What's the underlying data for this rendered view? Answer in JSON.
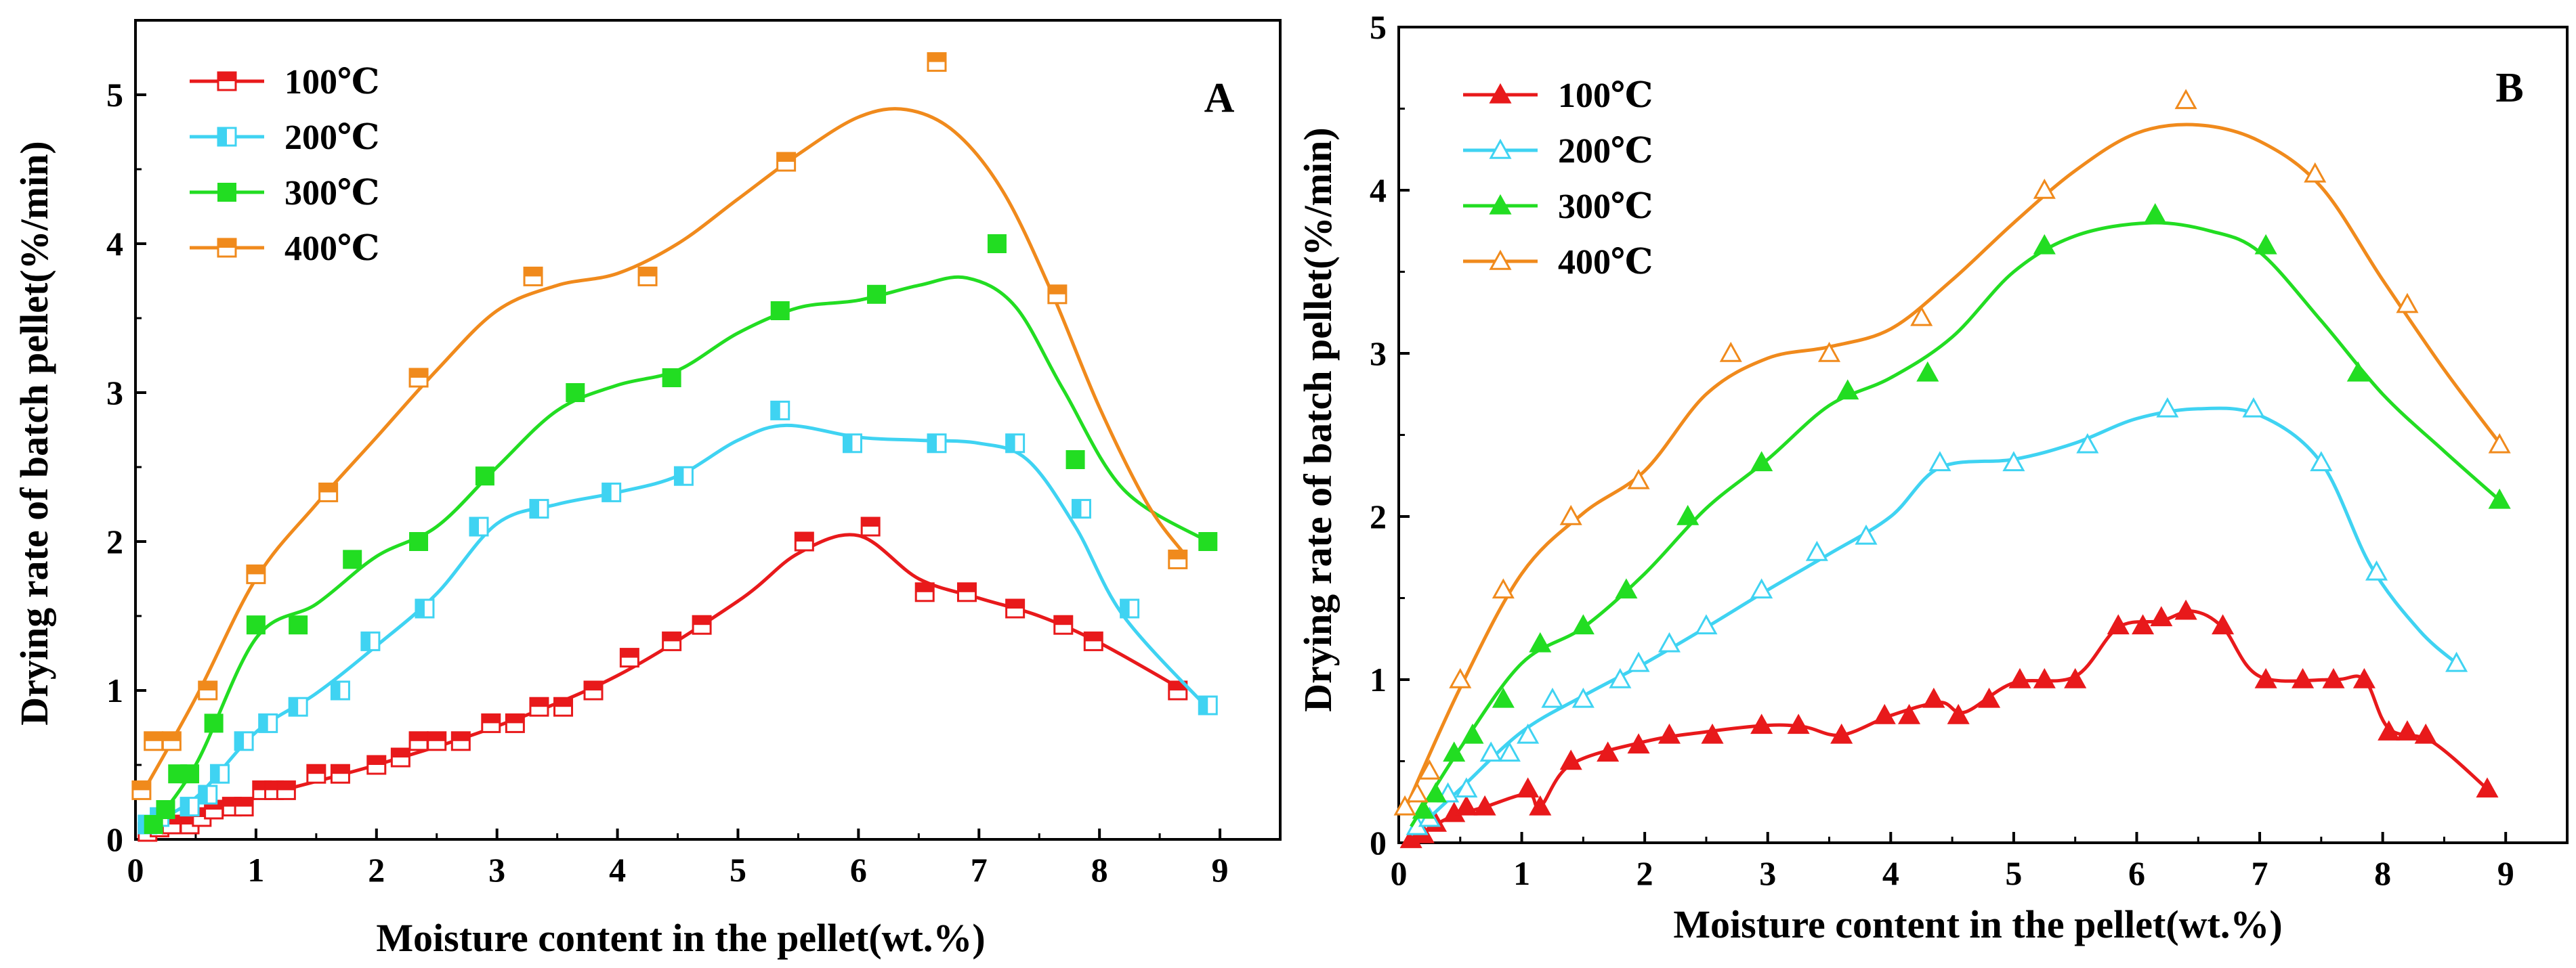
{
  "chart_data": [
    {
      "panel": "A",
      "type": "line",
      "xlabel": "Moisture content in the pellet(wt.%)",
      "ylabel": "Drying rate of batch pellet(%/min)",
      "xlim": [
        0,
        9.5
      ],
      "ylim": [
        0,
        5.5
      ],
      "xticks": [
        0,
        1,
        2,
        3,
        4,
        5,
        6,
        7,
        8,
        9
      ],
      "yticks": [
        0,
        1,
        2,
        3,
        4,
        5
      ],
      "legend_position": "top-left",
      "marker": "square",
      "series": [
        {
          "name": "100℃",
          "color": "#e8191b",
          "x": [
            0.1,
            0.2,
            0.3,
            0.45,
            0.55,
            0.65,
            0.8,
            0.9,
            1.05,
            1.15,
            1.25,
            1.5,
            1.7,
            2.0,
            2.2,
            2.35,
            2.5,
            2.7,
            2.95,
            3.15,
            3.35,
            3.55,
            3.8,
            4.1,
            4.45,
            4.7,
            5.55,
            6.1,
            6.55,
            6.9,
            7.3,
            7.7,
            7.95,
            8.65
          ],
          "y": [
            0.05,
            0.08,
            0.1,
            0.1,
            0.15,
            0.2,
            0.22,
            0.22,
            0.33,
            0.33,
            0.33,
            0.44,
            0.44,
            0.5,
            0.55,
            0.66,
            0.66,
            0.66,
            0.78,
            0.78,
            0.89,
            0.89,
            1.0,
            1.22,
            1.33,
            1.44,
            2.0,
            2.1,
            1.66,
            1.66,
            1.55,
            1.44,
            1.33,
            1.0
          ],
          "curve": [
            [
              0.1,
              0.05
            ],
            [
              1.0,
              0.28
            ],
            [
              2.0,
              0.5
            ],
            [
              3.0,
              0.76
            ],
            [
              4.0,
              1.1
            ],
            [
              5.0,
              1.6
            ],
            [
              5.5,
              1.92
            ],
            [
              6.0,
              2.04
            ],
            [
              6.5,
              1.75
            ],
            [
              7.0,
              1.62
            ],
            [
              7.5,
              1.5
            ],
            [
              8.0,
              1.32
            ],
            [
              8.7,
              1.0
            ]
          ]
        },
        {
          "name": "200℃",
          "color": "#3fd3f2",
          "x": [
            0.1,
            0.2,
            0.45,
            0.6,
            0.7,
            0.9,
            1.1,
            1.35,
            1.7,
            1.95,
            2.4,
            2.85,
            3.35,
            3.95,
            4.55,
            5.35,
            5.95,
            6.65,
            7.3,
            7.85,
            8.25,
            8.9
          ],
          "y": [
            0.1,
            0.15,
            0.22,
            0.3,
            0.44,
            0.66,
            0.78,
            0.89,
            1.0,
            1.33,
            1.55,
            2.1,
            2.22,
            2.33,
            2.44,
            2.88,
            2.66,
            2.66,
            2.66,
            2.22,
            1.55,
            0.9
          ],
          "curve": [
            [
              0.1,
              0.1
            ],
            [
              0.5,
              0.28
            ],
            [
              1.0,
              0.72
            ],
            [
              1.5,
              0.98
            ],
            [
              2.0,
              1.3
            ],
            [
              2.5,
              1.65
            ],
            [
              3.0,
              2.12
            ],
            [
              3.5,
              2.25
            ],
            [
              4.0,
              2.33
            ],
            [
              4.5,
              2.44
            ],
            [
              5.0,
              2.68
            ],
            [
              5.4,
              2.78
            ],
            [
              6.0,
              2.7
            ],
            [
              6.5,
              2.68
            ],
            [
              7.0,
              2.66
            ],
            [
              7.4,
              2.55
            ],
            [
              7.8,
              2.1
            ],
            [
              8.2,
              1.5
            ],
            [
              8.9,
              0.88
            ]
          ]
        },
        {
          "name": "300℃",
          "color": "#22dd22",
          "x": [
            0.15,
            0.25,
            0.35,
            0.45,
            0.65,
            1.0,
            1.35,
            1.8,
            2.35,
            2.9,
            3.65,
            4.45,
            5.35,
            6.15,
            7.15,
            7.8,
            8.9
          ],
          "y": [
            0.1,
            0.2,
            0.44,
            0.44,
            0.78,
            1.44,
            1.44,
            1.88,
            2.0,
            2.44,
            3.0,
            3.1,
            3.55,
            3.66,
            4.0,
            2.55,
            2.0
          ],
          "curve": [
            [
              0.1,
              0.05
            ],
            [
              0.5,
              0.5
            ],
            [
              1.0,
              1.35
            ],
            [
              1.5,
              1.58
            ],
            [
              2.0,
              1.9
            ],
            [
              2.5,
              2.1
            ],
            [
              3.0,
              2.5
            ],
            [
              3.5,
              2.88
            ],
            [
              4.0,
              3.05
            ],
            [
              4.5,
              3.15
            ],
            [
              5.0,
              3.4
            ],
            [
              5.5,
              3.57
            ],
            [
              6.0,
              3.62
            ],
            [
              6.5,
              3.72
            ],
            [
              6.9,
              3.77
            ],
            [
              7.3,
              3.58
            ],
            [
              7.7,
              3.02
            ],
            [
              8.2,
              2.35
            ],
            [
              8.9,
              2.0
            ]
          ]
        },
        {
          "name": "400℃",
          "color": "#f08a1c",
          "x": [
            0.05,
            0.15,
            0.3,
            0.6,
            1.0,
            1.6,
            2.35,
            3.3,
            4.25,
            5.4,
            6.65,
            7.65,
            8.65
          ],
          "y": [
            0.33,
            0.66,
            0.66,
            1.0,
            1.78,
            2.33,
            3.1,
            3.78,
            3.78,
            4.55,
            5.22,
            3.66,
            1.88
          ],
          "curve": [
            [
              0.05,
              0.3
            ],
            [
              0.5,
              0.95
            ],
            [
              1.0,
              1.75
            ],
            [
              1.5,
              2.25
            ],
            [
              2.0,
              2.7
            ],
            [
              2.5,
              3.15
            ],
            [
              3.0,
              3.55
            ],
            [
              3.5,
              3.72
            ],
            [
              4.0,
              3.8
            ],
            [
              4.5,
              4.0
            ],
            [
              5.0,
              4.3
            ],
            [
              5.5,
              4.6
            ],
            [
              6.0,
              4.85
            ],
            [
              6.4,
              4.9
            ],
            [
              6.8,
              4.75
            ],
            [
              7.2,
              4.35
            ],
            [
              7.6,
              3.68
            ],
            [
              8.0,
              2.9
            ],
            [
              8.4,
              2.25
            ],
            [
              8.7,
              1.92
            ]
          ]
        }
      ]
    },
    {
      "panel": "B",
      "type": "line",
      "xlabel": "Moisture content in the pellet(wt.%)",
      "ylabel": "Drying rate of  batch pellet(%/min)",
      "xlim": [
        0,
        9.5
      ],
      "ylim": [
        0,
        5
      ],
      "xticks": [
        0,
        1,
        2,
        3,
        4,
        5,
        6,
        7,
        8,
        9
      ],
      "yticks": [
        0,
        1,
        2,
        3,
        4,
        5
      ],
      "legend_position": "top-left",
      "marker": "triangle",
      "series": [
        {
          "name": "100℃",
          "color": "#e8191b",
          "x": [
            0.1,
            0.2,
            0.3,
            0.45,
            0.55,
            0.7,
            1.05,
            1.15,
            1.4,
            1.7,
            1.95,
            2.2,
            2.55,
            2.95,
            3.25,
            3.6,
            3.95,
            4.15,
            4.35,
            4.55,
            4.8,
            5.05,
            5.25,
            5.5,
            5.85,
            6.05,
            6.2,
            6.4,
            6.7,
            7.05,
            7.35,
            7.6,
            7.85,
            8.05,
            8.2,
            8.35,
            8.85
          ],
          "y": [
            0.02,
            0.05,
            0.12,
            0.18,
            0.22,
            0.22,
            0.33,
            0.22,
            0.5,
            0.55,
            0.6,
            0.66,
            0.66,
            0.72,
            0.72,
            0.66,
            0.78,
            0.78,
            0.88,
            0.78,
            0.88,
            1.0,
            1.0,
            1.0,
            1.33,
            1.33,
            1.38,
            1.42,
            1.33,
            1.0,
            1.0,
            1.0,
            1.0,
            0.68,
            0.68,
            0.66,
            0.33
          ],
          "curve": [
            [
              0.1,
              0.02
            ],
            [
              0.4,
              0.15
            ],
            [
              0.7,
              0.22
            ],
            [
              1.05,
              0.3
            ],
            [
              1.15,
              0.22
            ],
            [
              1.4,
              0.48
            ],
            [
              2.0,
              0.62
            ],
            [
              2.5,
              0.68
            ],
            [
              3.0,
              0.72
            ],
            [
              3.3,
              0.71
            ],
            [
              3.6,
              0.66
            ],
            [
              4.0,
              0.78
            ],
            [
              4.4,
              0.86
            ],
            [
              4.6,
              0.8
            ],
            [
              5.0,
              0.98
            ],
            [
              5.5,
              1.02
            ],
            [
              5.85,
              1.32
            ],
            [
              6.2,
              1.36
            ],
            [
              6.45,
              1.42
            ],
            [
              6.7,
              1.32
            ],
            [
              7.0,
              1.02
            ],
            [
              7.6,
              1.0
            ],
            [
              7.85,
              1.0
            ],
            [
              8.05,
              0.7
            ],
            [
              8.4,
              0.62
            ],
            [
              8.85,
              0.33
            ]
          ]
        },
        {
          "name": "200℃",
          "color": "#3fd3f2",
          "x": [
            0.15,
            0.25,
            0.4,
            0.55,
            0.75,
            0.9,
            1.05,
            1.25,
            1.5,
            1.8,
            1.95,
            2.2,
            2.5,
            2.95,
            3.4,
            3.8,
            4.4,
            5.0,
            5.6,
            6.25,
            6.95,
            7.5,
            7.95,
            8.6
          ],
          "y": [
            0.1,
            0.15,
            0.3,
            0.33,
            0.55,
            0.55,
            0.66,
            0.88,
            0.88,
            1.0,
            1.1,
            1.22,
            1.33,
            1.55,
            1.78,
            1.88,
            2.33,
            2.33,
            2.44,
            2.66,
            2.66,
            2.33,
            1.66,
            1.1
          ],
          "curve": [
            [
              0.1,
              0.05
            ],
            [
              0.5,
              0.33
            ],
            [
              1.0,
              0.68
            ],
            [
              1.5,
              0.9
            ],
            [
              2.0,
              1.1
            ],
            [
              2.5,
              1.32
            ],
            [
              3.0,
              1.55
            ],
            [
              3.5,
              1.77
            ],
            [
              4.0,
              2.0
            ],
            [
              4.4,
              2.3
            ],
            [
              5.0,
              2.35
            ],
            [
              5.5,
              2.45
            ],
            [
              6.0,
              2.6
            ],
            [
              6.5,
              2.66
            ],
            [
              7.0,
              2.62
            ],
            [
              7.5,
              2.33
            ],
            [
              7.9,
              1.7
            ],
            [
              8.3,
              1.3
            ],
            [
              8.6,
              1.1
            ]
          ]
        },
        {
          "name": "300℃",
          "color": "#22dd22",
          "x": [
            0.2,
            0.3,
            0.45,
            0.6,
            0.85,
            1.15,
            1.5,
            1.85,
            2.35,
            2.95,
            3.65,
            4.3,
            5.25,
            6.15,
            7.05,
            7.8,
            8.95
          ],
          "y": [
            0.2,
            0.3,
            0.55,
            0.66,
            0.88,
            1.22,
            1.33,
            1.55,
            2.0,
            2.33,
            2.77,
            2.88,
            3.66,
            3.85,
            3.66,
            2.88,
            2.1
          ],
          "curve": [
            [
              0.1,
              0.1
            ],
            [
              0.5,
              0.58
            ],
            [
              1.0,
              1.1
            ],
            [
              1.5,
              1.32
            ],
            [
              2.0,
              1.65
            ],
            [
              2.5,
              2.05
            ],
            [
              3.0,
              2.35
            ],
            [
              3.5,
              2.68
            ],
            [
              4.0,
              2.85
            ],
            [
              4.5,
              3.1
            ],
            [
              5.0,
              3.5
            ],
            [
              5.5,
              3.72
            ],
            [
              6.1,
              3.8
            ],
            [
              6.6,
              3.75
            ],
            [
              7.0,
              3.62
            ],
            [
              7.5,
              3.2
            ],
            [
              8.0,
              2.75
            ],
            [
              8.5,
              2.4
            ],
            [
              8.95,
              2.1
            ]
          ]
        },
        {
          "name": "400℃",
          "color": "#f08a1c",
          "x": [
            0.05,
            0.15,
            0.25,
            0.5,
            0.85,
            1.4,
            1.95,
            2.7,
            3.5,
            4.25,
            5.25,
            6.4,
            7.45,
            8.2,
            8.95
          ],
          "y": [
            0.22,
            0.3,
            0.44,
            1.0,
            1.55,
            2.0,
            2.22,
            3.0,
            3.0,
            3.22,
            4.0,
            4.55,
            4.1,
            3.3,
            2.44
          ],
          "curve": [
            [
              0.05,
              0.2
            ],
            [
              0.5,
              0.95
            ],
            [
              1.0,
              1.65
            ],
            [
              1.5,
              2.02
            ],
            [
              2.0,
              2.28
            ],
            [
              2.5,
              2.75
            ],
            [
              3.0,
              2.97
            ],
            [
              3.5,
              3.04
            ],
            [
              4.0,
              3.15
            ],
            [
              4.5,
              3.45
            ],
            [
              5.0,
              3.8
            ],
            [
              5.5,
              4.12
            ],
            [
              6.0,
              4.35
            ],
            [
              6.5,
              4.4
            ],
            [
              7.0,
              4.3
            ],
            [
              7.5,
              4.02
            ],
            [
              8.0,
              3.45
            ],
            [
              8.5,
              2.9
            ],
            [
              8.95,
              2.45
            ]
          ]
        }
      ]
    }
  ]
}
